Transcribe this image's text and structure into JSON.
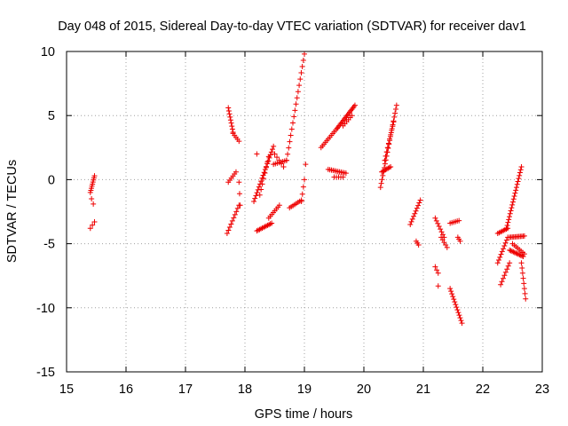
{
  "chart_data": {
    "type": "scatter",
    "title": "Day 048 of 2015, Sidereal Day-to-day VTEC variation (SDTVAR) for receiver dav1",
    "xlabel": "GPS time / hours",
    "ylabel": "SDTVAR / TECUs",
    "xlim": [
      15,
      23
    ],
    "ylim": [
      -15,
      10
    ],
    "xticks": [
      "15",
      "16",
      "17",
      "18",
      "19",
      "20",
      "21",
      "22",
      "23"
    ],
    "yticks": [
      "-15",
      "-10",
      "-5",
      "0",
      "5",
      "10"
    ],
    "grid": true,
    "marker": "+",
    "color": "#ee0000",
    "segments": [
      {
        "x0": 15.4,
        "y0": -1.0,
        "x1": 15.47,
        "y1": 0.3,
        "n": 9
      },
      {
        "x0": 15.4,
        "y0": -3.8,
        "x1": 15.47,
        "y1": -3.3,
        "n": 3
      },
      {
        "x0": 15.42,
        "y0": -1.5,
        "x1": 15.45,
        "y1": -1.9,
        "n": 2
      },
      {
        "x0": 17.72,
        "y0": 5.6,
        "x1": 17.8,
        "y1": 3.7,
        "n": 9
      },
      {
        "x0": 17.8,
        "y0": 3.6,
        "x1": 17.9,
        "y1": 3.0,
        "n": 5
      },
      {
        "x0": 17.72,
        "y0": -0.2,
        "x1": 17.85,
        "y1": 0.6,
        "n": 6
      },
      {
        "x0": 17.7,
        "y0": -4.2,
        "x1": 17.9,
        "y1": -2.0,
        "n": 10
      },
      {
        "x0": 17.9,
        "y0": -0.2,
        "x1": 17.92,
        "y1": -2.0,
        "n": 3
      },
      {
        "x0": 18.15,
        "y0": -1.7,
        "x1": 18.48,
        "y1": 2.6,
        "n": 20
      },
      {
        "x0": 18.25,
        "y0": -1.2,
        "x1": 18.4,
        "y1": 1.8,
        "n": 8
      },
      {
        "x0": 18.2,
        "y0": 2.0,
        "x1": 18.2,
        "y1": 2.0,
        "n": 1
      },
      {
        "x0": 18.48,
        "y0": 1.2,
        "x1": 18.7,
        "y1": 1.5,
        "n": 8
      },
      {
        "x0": 18.5,
        "y0": 2.0,
        "x1": 18.65,
        "y1": 1.0,
        "n": 5
      },
      {
        "x0": 18.2,
        "y0": -4.0,
        "x1": 18.45,
        "y1": -3.4,
        "n": 12
      },
      {
        "x0": 18.4,
        "y0": -3.0,
        "x1": 18.58,
        "y1": -2.0,
        "n": 8
      },
      {
        "x0": 18.7,
        "y0": 1.5,
        "x1": 19.0,
        "y1": 9.8,
        "n": 18
      },
      {
        "x0": 18.75,
        "y0": -2.2,
        "x1": 18.95,
        "y1": -1.6,
        "n": 8
      },
      {
        "x0": 18.95,
        "y0": -1.7,
        "x1": 19.0,
        "y1": 0.0,
        "n": 4
      },
      {
        "x0": 19.02,
        "y0": 1.2,
        "x1": 19.02,
        "y1": 1.2,
        "n": 1
      },
      {
        "x0": 19.28,
        "y0": 2.5,
        "x1": 19.55,
        "y1": 4.0,
        "n": 12
      },
      {
        "x0": 19.55,
        "y0": 4.0,
        "x1": 19.85,
        "y1": 5.8,
        "n": 18
      },
      {
        "x0": 19.65,
        "y0": 4.2,
        "x1": 19.8,
        "y1": 5.0,
        "n": 6
      },
      {
        "x0": 19.4,
        "y0": 0.8,
        "x1": 19.7,
        "y1": 0.5,
        "n": 12
      },
      {
        "x0": 19.5,
        "y0": 0.2,
        "x1": 19.65,
        "y1": 0.2,
        "n": 5
      },
      {
        "x0": 20.28,
        "y0": -0.6,
        "x1": 20.55,
        "y1": 5.8,
        "n": 22
      },
      {
        "x0": 20.3,
        "y0": 0.6,
        "x1": 20.45,
        "y1": 1.0,
        "n": 8
      },
      {
        "x0": 20.35,
        "y0": 1.5,
        "x1": 20.5,
        "y1": 4.5,
        "n": 10
      },
      {
        "x0": 20.78,
        "y0": -3.5,
        "x1": 20.95,
        "y1": -1.6,
        "n": 10
      },
      {
        "x0": 20.88,
        "y0": -4.8,
        "x1": 20.92,
        "y1": -5.1,
        "n": 3
      },
      {
        "x0": 21.2,
        "y0": -3.0,
        "x1": 21.35,
        "y1": -4.5,
        "n": 8
      },
      {
        "x0": 21.3,
        "y0": -4.5,
        "x1": 21.4,
        "y1": -5.3,
        "n": 5
      },
      {
        "x0": 21.45,
        "y0": -3.4,
        "x1": 21.6,
        "y1": -3.2,
        "n": 6
      },
      {
        "x0": 21.58,
        "y0": -4.5,
        "x1": 21.62,
        "y1": -4.8,
        "n": 3
      },
      {
        "x0": 21.2,
        "y0": -6.8,
        "x1": 21.25,
        "y1": -7.3,
        "n": 3
      },
      {
        "x0": 21.25,
        "y0": -8.3,
        "x1": 21.25,
        "y1": -8.3,
        "n": 1
      },
      {
        "x0": 21.45,
        "y0": -8.5,
        "x1": 21.65,
        "y1": -11.2,
        "n": 14
      },
      {
        "x0": 22.25,
        "y0": -4.2,
        "x1": 22.42,
        "y1": -3.8,
        "n": 8
      },
      {
        "x0": 22.25,
        "y0": -6.5,
        "x1": 22.42,
        "y1": -4.5,
        "n": 10
      },
      {
        "x0": 22.3,
        "y0": -8.2,
        "x1": 22.45,
        "y1": -6.5,
        "n": 8
      },
      {
        "x0": 22.4,
        "y0": -3.8,
        "x1": 22.65,
        "y1": 1.0,
        "n": 22
      },
      {
        "x0": 22.45,
        "y0": -4.5,
        "x1": 22.7,
        "y1": -4.4,
        "n": 12
      },
      {
        "x0": 22.45,
        "y0": -5.5,
        "x1": 22.68,
        "y1": -6.0,
        "n": 12
      },
      {
        "x0": 22.5,
        "y0": -5.0,
        "x1": 22.7,
        "y1": -5.8,
        "n": 8
      },
      {
        "x0": 22.65,
        "y0": -6.5,
        "x1": 22.72,
        "y1": -9.3,
        "n": 8
      }
    ]
  }
}
